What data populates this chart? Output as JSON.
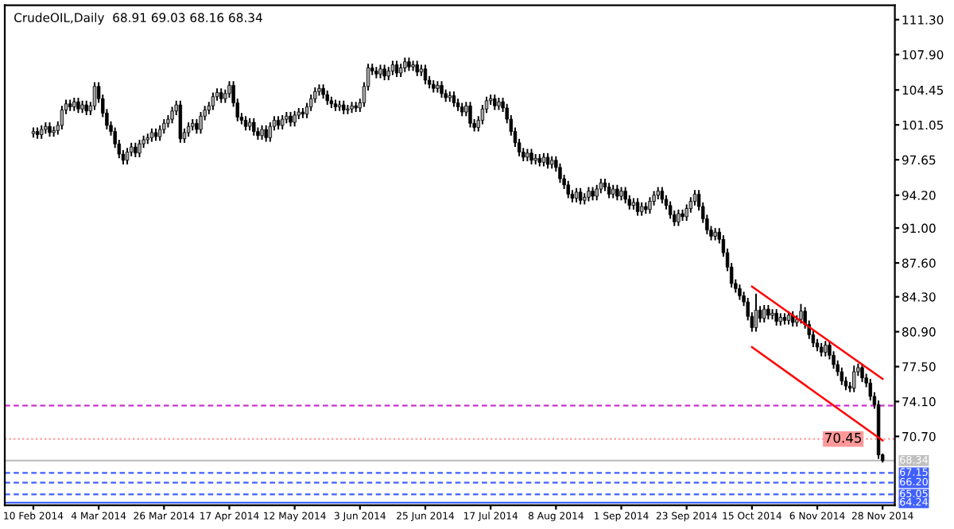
{
  "chart_data": {
    "type": "candlestick",
    "title": "CrudeOIL,Daily  68.91 69.03 68.16 68.34",
    "categories": [
      "10 Feb 2014",
      null,
      null,
      null,
      null,
      null,
      null,
      null,
      null,
      null,
      null,
      null,
      null,
      null,
      null,
      null,
      "4 Mar 2014",
      null,
      null,
      null,
      null,
      null,
      null,
      null,
      null,
      null,
      null,
      null,
      null,
      null,
      null,
      null,
      "26 Mar 2014",
      null,
      null,
      null,
      null,
      null,
      null,
      null,
      null,
      null,
      null,
      null,
      null,
      null,
      null,
      null,
      "17 Apr 2014",
      null,
      null,
      null,
      null,
      null,
      null,
      null,
      null,
      null,
      null,
      null,
      null,
      null,
      null,
      null,
      "12 May 2014",
      null,
      null,
      null,
      null,
      null,
      null,
      null,
      null,
      null,
      null,
      null,
      null,
      null,
      null,
      null,
      "3 Jun 2014",
      null,
      null,
      null,
      null,
      null,
      null,
      null,
      null,
      null,
      null,
      null,
      null,
      null,
      null,
      null,
      "25 Jun 2014",
      null,
      null,
      null,
      null,
      null,
      null,
      null,
      null,
      null,
      null,
      null,
      null,
      null,
      null,
      null,
      "17 Jul 2014",
      null,
      null,
      null,
      null,
      null,
      null,
      null,
      null,
      null,
      null,
      null,
      null,
      null,
      null,
      null,
      "8 Aug 2014",
      null,
      null,
      null,
      null,
      null,
      null,
      null,
      null,
      null,
      null,
      null,
      null,
      null,
      null,
      null,
      "1 Sep 2014",
      null,
      null,
      null,
      null,
      null,
      null,
      null,
      null,
      null,
      null,
      null,
      null,
      null,
      null,
      null,
      "23 Sep 2014",
      null,
      null,
      null,
      null,
      null,
      null,
      null,
      null,
      null,
      null,
      null,
      null,
      null,
      null,
      null,
      "15 Oct 2014",
      null,
      null,
      null,
      null,
      null,
      null,
      null,
      null,
      null,
      null,
      null,
      null,
      null,
      null,
      null,
      "6 Nov 2014",
      null,
      null,
      null,
      null,
      null,
      null,
      null,
      null,
      null,
      null,
      null,
      null,
      null,
      null,
      null,
      "28 Nov 2014"
    ],
    "ohlc": [
      [
        100.2,
        100.8,
        99.8,
        100.4
      ],
      [
        100.4,
        100.8,
        99.7,
        100.1
      ],
      [
        100.1,
        101.0,
        99.7,
        100.6
      ],
      [
        100.6,
        101.3,
        100.2,
        100.9
      ],
      [
        100.9,
        101.3,
        99.9,
        100.3
      ],
      [
        100.3,
        100.9,
        99.9,
        100.5
      ],
      [
        100.5,
        101.4,
        100.1,
        101.0
      ],
      [
        101.0,
        102.9,
        100.6,
        102.5
      ],
      [
        102.5,
        103.5,
        102.1,
        103.1
      ],
      [
        103.1,
        103.5,
        102.4,
        102.8
      ],
      [
        102.8,
        103.7,
        102.4,
        103.3
      ],
      [
        103.3,
        103.7,
        102.2,
        102.6
      ],
      [
        102.6,
        103.4,
        102.2,
        103.0
      ],
      [
        103.0,
        103.4,
        102.0,
        102.4
      ],
      [
        102.4,
        103.3,
        102.0,
        102.9
      ],
      [
        102.9,
        105.2,
        102.5,
        104.8
      ],
      [
        104.8,
        105.2,
        103.2,
        103.6
      ],
      [
        103.6,
        104.0,
        101.8,
        102.2
      ],
      [
        102.2,
        102.6,
        100.6,
        101.0
      ],
      [
        101.0,
        101.4,
        100.0,
        100.4
      ],
      [
        100.4,
        100.8,
        98.8,
        99.2
      ],
      [
        99.2,
        99.6,
        97.8,
        98.2
      ],
      [
        98.2,
        98.6,
        97.2,
        97.6
      ],
      [
        97.6,
        98.8,
        97.2,
        98.4
      ],
      [
        98.4,
        99.3,
        98.0,
        98.9
      ],
      [
        98.9,
        99.3,
        97.9,
        98.3
      ],
      [
        98.3,
        99.6,
        97.9,
        99.2
      ],
      [
        99.2,
        100.0,
        98.8,
        99.6
      ],
      [
        99.6,
        100.2,
        99.2,
        99.8
      ],
      [
        99.8,
        100.7,
        99.4,
        100.3
      ],
      [
        100.3,
        100.7,
        99.5,
        99.9
      ],
      [
        99.9,
        101.0,
        99.5,
        100.6
      ],
      [
        100.6,
        101.6,
        100.2,
        101.2
      ],
      [
        101.2,
        102.0,
        100.8,
        101.6
      ],
      [
        101.6,
        102.8,
        101.2,
        102.4
      ],
      [
        102.4,
        103.4,
        102.0,
        103.0
      ],
      [
        103.0,
        103.4,
        99.3,
        99.7
      ],
      [
        99.7,
        100.7,
        99.3,
        100.3
      ],
      [
        100.3,
        101.3,
        99.9,
        100.9
      ],
      [
        100.9,
        101.6,
        100.5,
        101.2
      ],
      [
        101.2,
        101.6,
        100.2,
        100.6
      ],
      [
        100.6,
        102.3,
        100.2,
        101.9
      ],
      [
        101.9,
        102.9,
        101.5,
        102.5
      ],
      [
        102.5,
        103.3,
        102.1,
        102.9
      ],
      [
        102.9,
        104.2,
        102.5,
        103.8
      ],
      [
        103.8,
        104.6,
        103.4,
        104.2
      ],
      [
        104.2,
        104.6,
        103.2,
        103.6
      ],
      [
        103.6,
        104.5,
        103.2,
        104.1
      ],
      [
        104.1,
        105.3,
        103.7,
        104.9
      ],
      [
        104.9,
        105.3,
        102.8,
        103.2
      ],
      [
        103.2,
        103.6,
        101.4,
        101.8
      ],
      [
        101.8,
        102.2,
        101.1,
        101.5
      ],
      [
        101.5,
        101.9,
        100.5,
        100.9
      ],
      [
        100.9,
        101.7,
        100.5,
        101.3
      ],
      [
        101.3,
        101.7,
        100.0,
        100.4
      ],
      [
        100.4,
        100.8,
        99.6,
        100.0
      ],
      [
        100.0,
        101.0,
        99.6,
        100.6
      ],
      [
        100.6,
        101.0,
        99.4,
        99.8
      ],
      [
        99.8,
        101.3,
        99.4,
        100.9
      ],
      [
        100.9,
        101.9,
        100.5,
        101.5
      ],
      [
        101.5,
        101.9,
        100.6,
        101.0
      ],
      [
        101.0,
        102.0,
        100.6,
        101.6
      ],
      [
        101.6,
        102.3,
        101.2,
        101.9
      ],
      [
        101.9,
        102.3,
        100.9,
        101.3
      ],
      [
        101.3,
        102.4,
        100.9,
        102.0
      ],
      [
        102.0,
        102.7,
        101.6,
        102.3
      ],
      [
        102.3,
        102.7,
        101.7,
        102.1
      ],
      [
        102.1,
        103.2,
        101.7,
        102.8
      ],
      [
        102.8,
        104.0,
        102.4,
        103.6
      ],
      [
        103.6,
        104.7,
        103.2,
        104.3
      ],
      [
        104.3,
        105.0,
        103.9,
        104.6
      ],
      [
        104.6,
        105.0,
        103.6,
        104.0
      ],
      [
        104.0,
        104.4,
        103.0,
        103.4
      ],
      [
        103.4,
        103.8,
        102.7,
        103.1
      ],
      [
        103.1,
        103.5,
        102.4,
        102.8
      ],
      [
        102.8,
        103.4,
        102.4,
        103.0
      ],
      [
        103.0,
        103.4,
        102.1,
        102.5
      ],
      [
        102.5,
        103.0,
        102.1,
        102.6
      ],
      [
        102.6,
        103.3,
        102.2,
        102.9
      ],
      [
        102.9,
        103.3,
        102.3,
        102.7
      ],
      [
        102.7,
        103.6,
        102.3,
        103.2
      ],
      [
        103.2,
        105.2,
        102.8,
        104.8
      ],
      [
        104.8,
        107.0,
        104.4,
        106.6
      ],
      [
        106.6,
        107.0,
        105.9,
        106.3
      ],
      [
        106.3,
        106.7,
        105.6,
        106.0
      ],
      [
        106.0,
        106.9,
        105.6,
        106.5
      ],
      [
        106.5,
        106.9,
        105.4,
        105.8
      ],
      [
        105.8,
        106.7,
        105.4,
        106.3
      ],
      [
        106.3,
        107.3,
        105.9,
        106.9
      ],
      [
        106.9,
        107.3,
        105.7,
        106.1
      ],
      [
        106.1,
        107.0,
        105.7,
        106.6
      ],
      [
        106.6,
        107.6,
        106.2,
        107.2
      ],
      [
        107.2,
        107.6,
        106.3,
        106.7
      ],
      [
        106.7,
        107.3,
        106.3,
        106.9
      ],
      [
        106.9,
        107.3,
        105.8,
        106.2
      ],
      [
        106.2,
        106.9,
        105.8,
        106.5
      ],
      [
        106.5,
        106.9,
        105.0,
        105.4
      ],
      [
        105.4,
        105.8,
        104.6,
        105.0
      ],
      [
        105.0,
        105.4,
        104.2,
        104.6
      ],
      [
        104.6,
        105.3,
        104.2,
        104.9
      ],
      [
        104.9,
        105.3,
        103.7,
        104.1
      ],
      [
        104.1,
        104.5,
        103.3,
        103.7
      ],
      [
        103.7,
        104.3,
        103.3,
        103.9
      ],
      [
        103.9,
        104.3,
        102.8,
        103.2
      ],
      [
        103.2,
        103.6,
        102.4,
        102.8
      ],
      [
        102.8,
        103.2,
        101.9,
        102.3
      ],
      [
        102.3,
        103.3,
        101.9,
        102.9
      ],
      [
        102.9,
        103.3,
        100.8,
        101.2
      ],
      [
        101.2,
        101.6,
        100.4,
        100.8
      ],
      [
        100.8,
        101.9,
        100.4,
        101.5
      ],
      [
        101.5,
        103.0,
        101.1,
        102.6
      ],
      [
        102.6,
        103.8,
        102.2,
        103.4
      ],
      [
        103.4,
        104.0,
        103.0,
        103.6
      ],
      [
        103.6,
        104.0,
        102.5,
        102.9
      ],
      [
        102.9,
        103.7,
        102.5,
        103.3
      ],
      [
        103.3,
        103.7,
        102.3,
        102.7
      ],
      [
        102.7,
        103.1,
        101.2,
        101.6
      ],
      [
        101.6,
        102.0,
        100.0,
        100.4
      ],
      [
        100.4,
        100.8,
        98.9,
        99.3
      ],
      [
        99.3,
        99.7,
        98.0,
        98.4
      ],
      [
        98.4,
        98.8,
        97.5,
        97.9
      ],
      [
        97.9,
        98.7,
        97.5,
        98.3
      ],
      [
        98.3,
        98.7,
        97.2,
        97.6
      ],
      [
        97.6,
        98.2,
        97.2,
        97.8
      ],
      [
        97.8,
        98.2,
        97.0,
        97.4
      ],
      [
        97.4,
        98.3,
        97.0,
        97.9
      ],
      [
        97.9,
        98.3,
        96.8,
        97.2
      ],
      [
        97.2,
        98.0,
        96.8,
        97.6
      ],
      [
        97.6,
        98.0,
        96.5,
        96.9
      ],
      [
        96.9,
        97.3,
        95.4,
        95.8
      ],
      [
        95.8,
        96.2,
        94.8,
        95.2
      ],
      [
        95.2,
        95.6,
        93.9,
        94.3
      ],
      [
        94.3,
        94.7,
        93.5,
        93.9
      ],
      [
        93.9,
        94.9,
        93.5,
        94.5
      ],
      [
        94.5,
        94.9,
        93.3,
        93.7
      ],
      [
        93.7,
        94.4,
        93.3,
        94.0
      ],
      [
        94.0,
        95.0,
        93.6,
        94.6
      ],
      [
        94.6,
        95.0,
        93.7,
        94.1
      ],
      [
        94.1,
        95.2,
        93.7,
        94.8
      ],
      [
        94.8,
        95.8,
        94.4,
        95.4
      ],
      [
        95.4,
        95.8,
        94.6,
        95.0
      ],
      [
        95.0,
        95.4,
        93.9,
        94.3
      ],
      [
        94.3,
        95.2,
        93.9,
        94.8
      ],
      [
        94.8,
        95.2,
        93.7,
        94.1
      ],
      [
        94.1,
        95.0,
        93.7,
        94.6
      ],
      [
        94.6,
        95.0,
        93.4,
        93.8
      ],
      [
        93.8,
        94.2,
        92.8,
        93.2
      ],
      [
        93.2,
        93.9,
        92.8,
        93.5
      ],
      [
        93.5,
        93.9,
        92.2,
        92.6
      ],
      [
        92.6,
        93.5,
        92.2,
        93.1
      ],
      [
        93.1,
        93.5,
        92.4,
        92.8
      ],
      [
        92.8,
        94.0,
        92.4,
        93.6
      ],
      [
        93.6,
        94.6,
        93.2,
        94.2
      ],
      [
        94.2,
        95.0,
        93.8,
        94.6
      ],
      [
        94.6,
        95.0,
        93.4,
        93.8
      ],
      [
        93.8,
        94.2,
        92.8,
        93.2
      ],
      [
        93.2,
        93.6,
        91.9,
        92.3
      ],
      [
        92.3,
        92.7,
        91.2,
        91.6
      ],
      [
        91.6,
        92.8,
        91.2,
        92.4
      ],
      [
        92.4,
        92.8,
        91.7,
        92.1
      ],
      [
        92.1,
        93.3,
        91.7,
        92.9
      ],
      [
        92.9,
        94.0,
        92.5,
        93.6
      ],
      [
        93.6,
        94.7,
        93.2,
        94.3
      ],
      [
        94.3,
        94.7,
        92.7,
        93.1
      ],
      [
        93.1,
        93.5,
        91.5,
        91.9
      ],
      [
        91.9,
        92.3,
        90.4,
        90.8
      ],
      [
        90.8,
        91.2,
        89.8,
        90.2
      ],
      [
        90.2,
        91.0,
        89.8,
        90.6
      ],
      [
        90.6,
        91.0,
        89.5,
        89.9
      ],
      [
        89.9,
        90.3,
        88.2,
        88.6
      ],
      [
        88.6,
        89.0,
        86.8,
        87.2
      ],
      [
        87.2,
        87.6,
        85.2,
        85.6
      ],
      [
        85.6,
        86.0,
        84.7,
        85.1
      ],
      [
        85.1,
        85.5,
        84.0,
        84.4
      ],
      [
        84.4,
        84.8,
        83.4,
        83.8
      ],
      [
        83.8,
        84.2,
        82.0,
        82.4
      ],
      [
        82.4,
        82.8,
        80.9,
        81.3
      ],
      [
        81.3,
        84.6,
        80.9,
        83.0
      ],
      [
        83.0,
        83.4,
        81.8,
        82.2
      ],
      [
        82.2,
        83.5,
        81.8,
        83.1
      ],
      [
        83.1,
        83.5,
        82.1,
        82.5
      ],
      [
        82.5,
        83.1,
        82.1,
        82.7
      ],
      [
        82.7,
        83.1,
        81.5,
        81.9
      ],
      [
        81.9,
        82.7,
        81.5,
        82.3
      ],
      [
        82.3,
        82.7,
        81.6,
        82.0
      ],
      [
        82.0,
        82.9,
        81.6,
        82.5
      ],
      [
        82.5,
        82.9,
        81.4,
        81.8
      ],
      [
        81.8,
        82.5,
        81.4,
        82.1
      ],
      [
        82.1,
        83.6,
        81.7,
        82.9
      ],
      [
        82.9,
        83.3,
        81.2,
        81.6
      ],
      [
        81.6,
        82.0,
        80.2,
        80.6
      ],
      [
        80.6,
        81.0,
        79.4,
        79.8
      ],
      [
        79.8,
        80.2,
        79.0,
        79.4
      ],
      [
        79.4,
        79.8,
        78.5,
        78.9
      ],
      [
        78.9,
        80.0,
        78.5,
        79.6
      ],
      [
        79.6,
        80.0,
        78.2,
        78.6
      ],
      [
        78.6,
        79.0,
        77.3,
        77.7
      ],
      [
        77.7,
        78.1,
        76.6,
        77.0
      ],
      [
        77.0,
        77.4,
        75.7,
        76.1
      ],
      [
        76.1,
        76.5,
        75.2,
        75.6
      ],
      [
        75.6,
        76.0,
        75.0,
        75.4
      ],
      [
        75.4,
        77.6,
        75.0,
        77.0
      ],
      [
        77.0,
        77.8,
        76.6,
        77.4
      ],
      [
        77.4,
        77.8,
        76.0,
        76.4
      ],
      [
        76.4,
        76.8,
        75.5,
        75.9
      ],
      [
        75.9,
        76.3,
        74.2,
        74.6
      ],
      [
        74.6,
        75.0,
        73.4,
        73.8
      ],
      [
        73.8,
        74.2,
        68.5,
        68.9
      ],
      [
        68.91,
        69.03,
        68.16,
        68.34
      ]
    ],
    "colors": [
      "#a8a8a8",
      "#000000",
      "#a8a8a8",
      "#a8a8a8",
      "#000000",
      "#a8a8a8",
      "#a8a8a8",
      "#a8a8a8",
      "#a8a8a8",
      "#000000",
      "#a8a8a8",
      "#000000",
      "#a8a8a8",
      "#000000",
      "#a8a8a8",
      "#a8a8a8",
      "#000000",
      "#000000",
      "#000000",
      "#000000",
      "#000000",
      "#000000",
      "#000000",
      "#a8a8a8",
      "#a8a8a8",
      "#000000",
      "#a8a8a8",
      "#a8a8a8",
      "#a8a8a8",
      "#a8a8a8",
      "#000000",
      "#a8a8a8",
      "#a8a8a8",
      "#a8a8a8",
      "#a8a8a8",
      "#a8a8a8",
      "#000000",
      "#a8a8a8",
      "#a8a8a8",
      "#a8a8a8",
      "#000000",
      "#a8a8a8",
      "#a8a8a8",
      "#a8a8a8",
      "#a8a8a8",
      "#a8a8a8",
      "#000000",
      "#a8a8a8",
      "#a8a8a8",
      "#000000",
      "#000000",
      "#000000",
      "#000000",
      "#a8a8a8",
      "#000000",
      "#000000",
      "#a8a8a8",
      "#000000",
      "#a8a8a8",
      "#a8a8a8",
      "#000000",
      "#a8a8a8",
      "#a8a8a8",
      "#000000",
      "#a8a8a8",
      "#a8a8a8",
      "#000000",
      "#a8a8a8",
      "#a8a8a8",
      "#a8a8a8",
      "#a8a8a8",
      "#000000",
      "#000000",
      "#000000",
      "#000000",
      "#a8a8a8",
      "#000000",
      "#a8a8a8",
      "#a8a8a8",
      "#000000",
      "#a8a8a8",
      "#a8a8a8",
      "#a8a8a8",
      "#000000",
      "#000000",
      "#a8a8a8",
      "#000000",
      "#a8a8a8",
      "#a8a8a8",
      "#000000",
      "#a8a8a8",
      "#a8a8a8",
      "#000000",
      "#a8a8a8",
      "#000000",
      "#a8a8a8",
      "#000000",
      "#000000",
      "#000000",
      "#a8a8a8",
      "#000000",
      "#000000",
      "#a8a8a8",
      "#000000",
      "#000000",
      "#000000",
      "#a8a8a8",
      "#000000",
      "#000000",
      "#a8a8a8",
      "#a8a8a8",
      "#a8a8a8",
      "#a8a8a8",
      "#000000",
      "#a8a8a8",
      "#000000",
      "#000000",
      "#000000",
      "#000000",
      "#000000",
      "#000000",
      "#a8a8a8",
      "#000000",
      "#a8a8a8",
      "#000000",
      "#a8a8a8",
      "#000000",
      "#a8a8a8",
      "#000000",
      "#000000",
      "#000000",
      "#000000",
      "#000000",
      "#a8a8a8",
      "#000000",
      "#a8a8a8",
      "#a8a8a8",
      "#000000",
      "#a8a8a8",
      "#a8a8a8",
      "#000000",
      "#000000",
      "#a8a8a8",
      "#000000",
      "#a8a8a8",
      "#000000",
      "#000000",
      "#a8a8a8",
      "#000000",
      "#a8a8a8",
      "#000000",
      "#a8a8a8",
      "#a8a8a8",
      "#a8a8a8",
      "#000000",
      "#000000",
      "#000000",
      "#000000",
      "#a8a8a8",
      "#000000",
      "#a8a8a8",
      "#a8a8a8",
      "#a8a8a8",
      "#000000",
      "#000000",
      "#000000",
      "#000000",
      "#a8a8a8",
      "#000000",
      "#000000",
      "#000000",
      "#000000",
      "#000000",
      "#000000",
      "#000000",
      "#000000",
      "#000000",
      "#a8a8a8",
      "#000000",
      "#a8a8a8",
      "#000000",
      "#a8a8a8",
      "#000000",
      "#a8a8a8",
      "#000000",
      "#a8a8a8",
      "#000000",
      "#a8a8a8",
      "#a8a8a8",
      "#000000",
      "#000000",
      "#000000",
      "#000000",
      "#000000",
      "#a8a8a8",
      "#000000",
      "#000000",
      "#000000",
      "#000000",
      "#000000",
      "#000000",
      "#a8a8a8",
      "#a8a8a8",
      "#000000",
      "#000000",
      "#000000",
      "#000000",
      "#000000",
      "#000000"
    ],
    "series": [
      {
        "type": "line",
        "color": "#ff0000",
        "x": [
          "15 Oct 2014",
          "28 Nov 2014"
        ],
        "values": [
          85.3,
          76.3
        ]
      },
      {
        "type": "line",
        "color": "#ff0000",
        "x": [
          "15 Oct 2014",
          "28 Nov 2014"
        ],
        "values": [
          79.4,
          70.3
        ]
      }
    ],
    "ylim": [
      64.0,
      112.7
    ],
    "yticks": [
      {
        "value": 111.3,
        "label": "111.30"
      },
      {
        "value": 107.9,
        "label": "107.90"
      },
      104.45,
      101.05,
      97.65,
      {
        "value": 94.2,
        "label": "94.20"
      },
      {
        "value": 91.0,
        "label": "91.00"
      },
      {
        "value": 87.6,
        "label": "87.60"
      },
      {
        "value": 84.3,
        "label": "84.30"
      },
      {
        "value": 80.9,
        "label": "80.90"
      },
      {
        "value": 77.5,
        "label": "77.50"
      },
      {
        "value": 74.1,
        "label": "74.10"
      },
      {
        "value": 70.7,
        "label": "70.70"
      }
    ],
    "ref_lines": [
      {
        "axis": "y",
        "value": 70.45,
        "label": "70.45",
        "color": "#ff9999",
        "line_style": "dotted"
      },
      {
        "axis": "y",
        "value": 73.7,
        "color": "#cc33cc",
        "line_style": "dashed"
      },
      {
        "axis": "y",
        "value": 68.34,
        "label": "68.34",
        "color": "#c0c0c0",
        "line_style": "solid"
      },
      {
        "axis": "y",
        "value": 67.15,
        "label": "67.15",
        "color": "#4060ff",
        "line_style": "dashed"
      },
      {
        "axis": "y",
        "value": 66.2,
        "label": "66.20",
        "color": "#4060ff",
        "line_style": "dashed"
      },
      {
        "axis": "y",
        "value": 65.05,
        "label": "65.05",
        "color": "#4060ff",
        "line_style": "dashed"
      },
      {
        "axis": "y",
        "value": 64.24,
        "label": "64.24",
        "color": "#4060ff",
        "line_style": "solid"
      }
    ],
    "grid": false,
    "legend": false
  }
}
